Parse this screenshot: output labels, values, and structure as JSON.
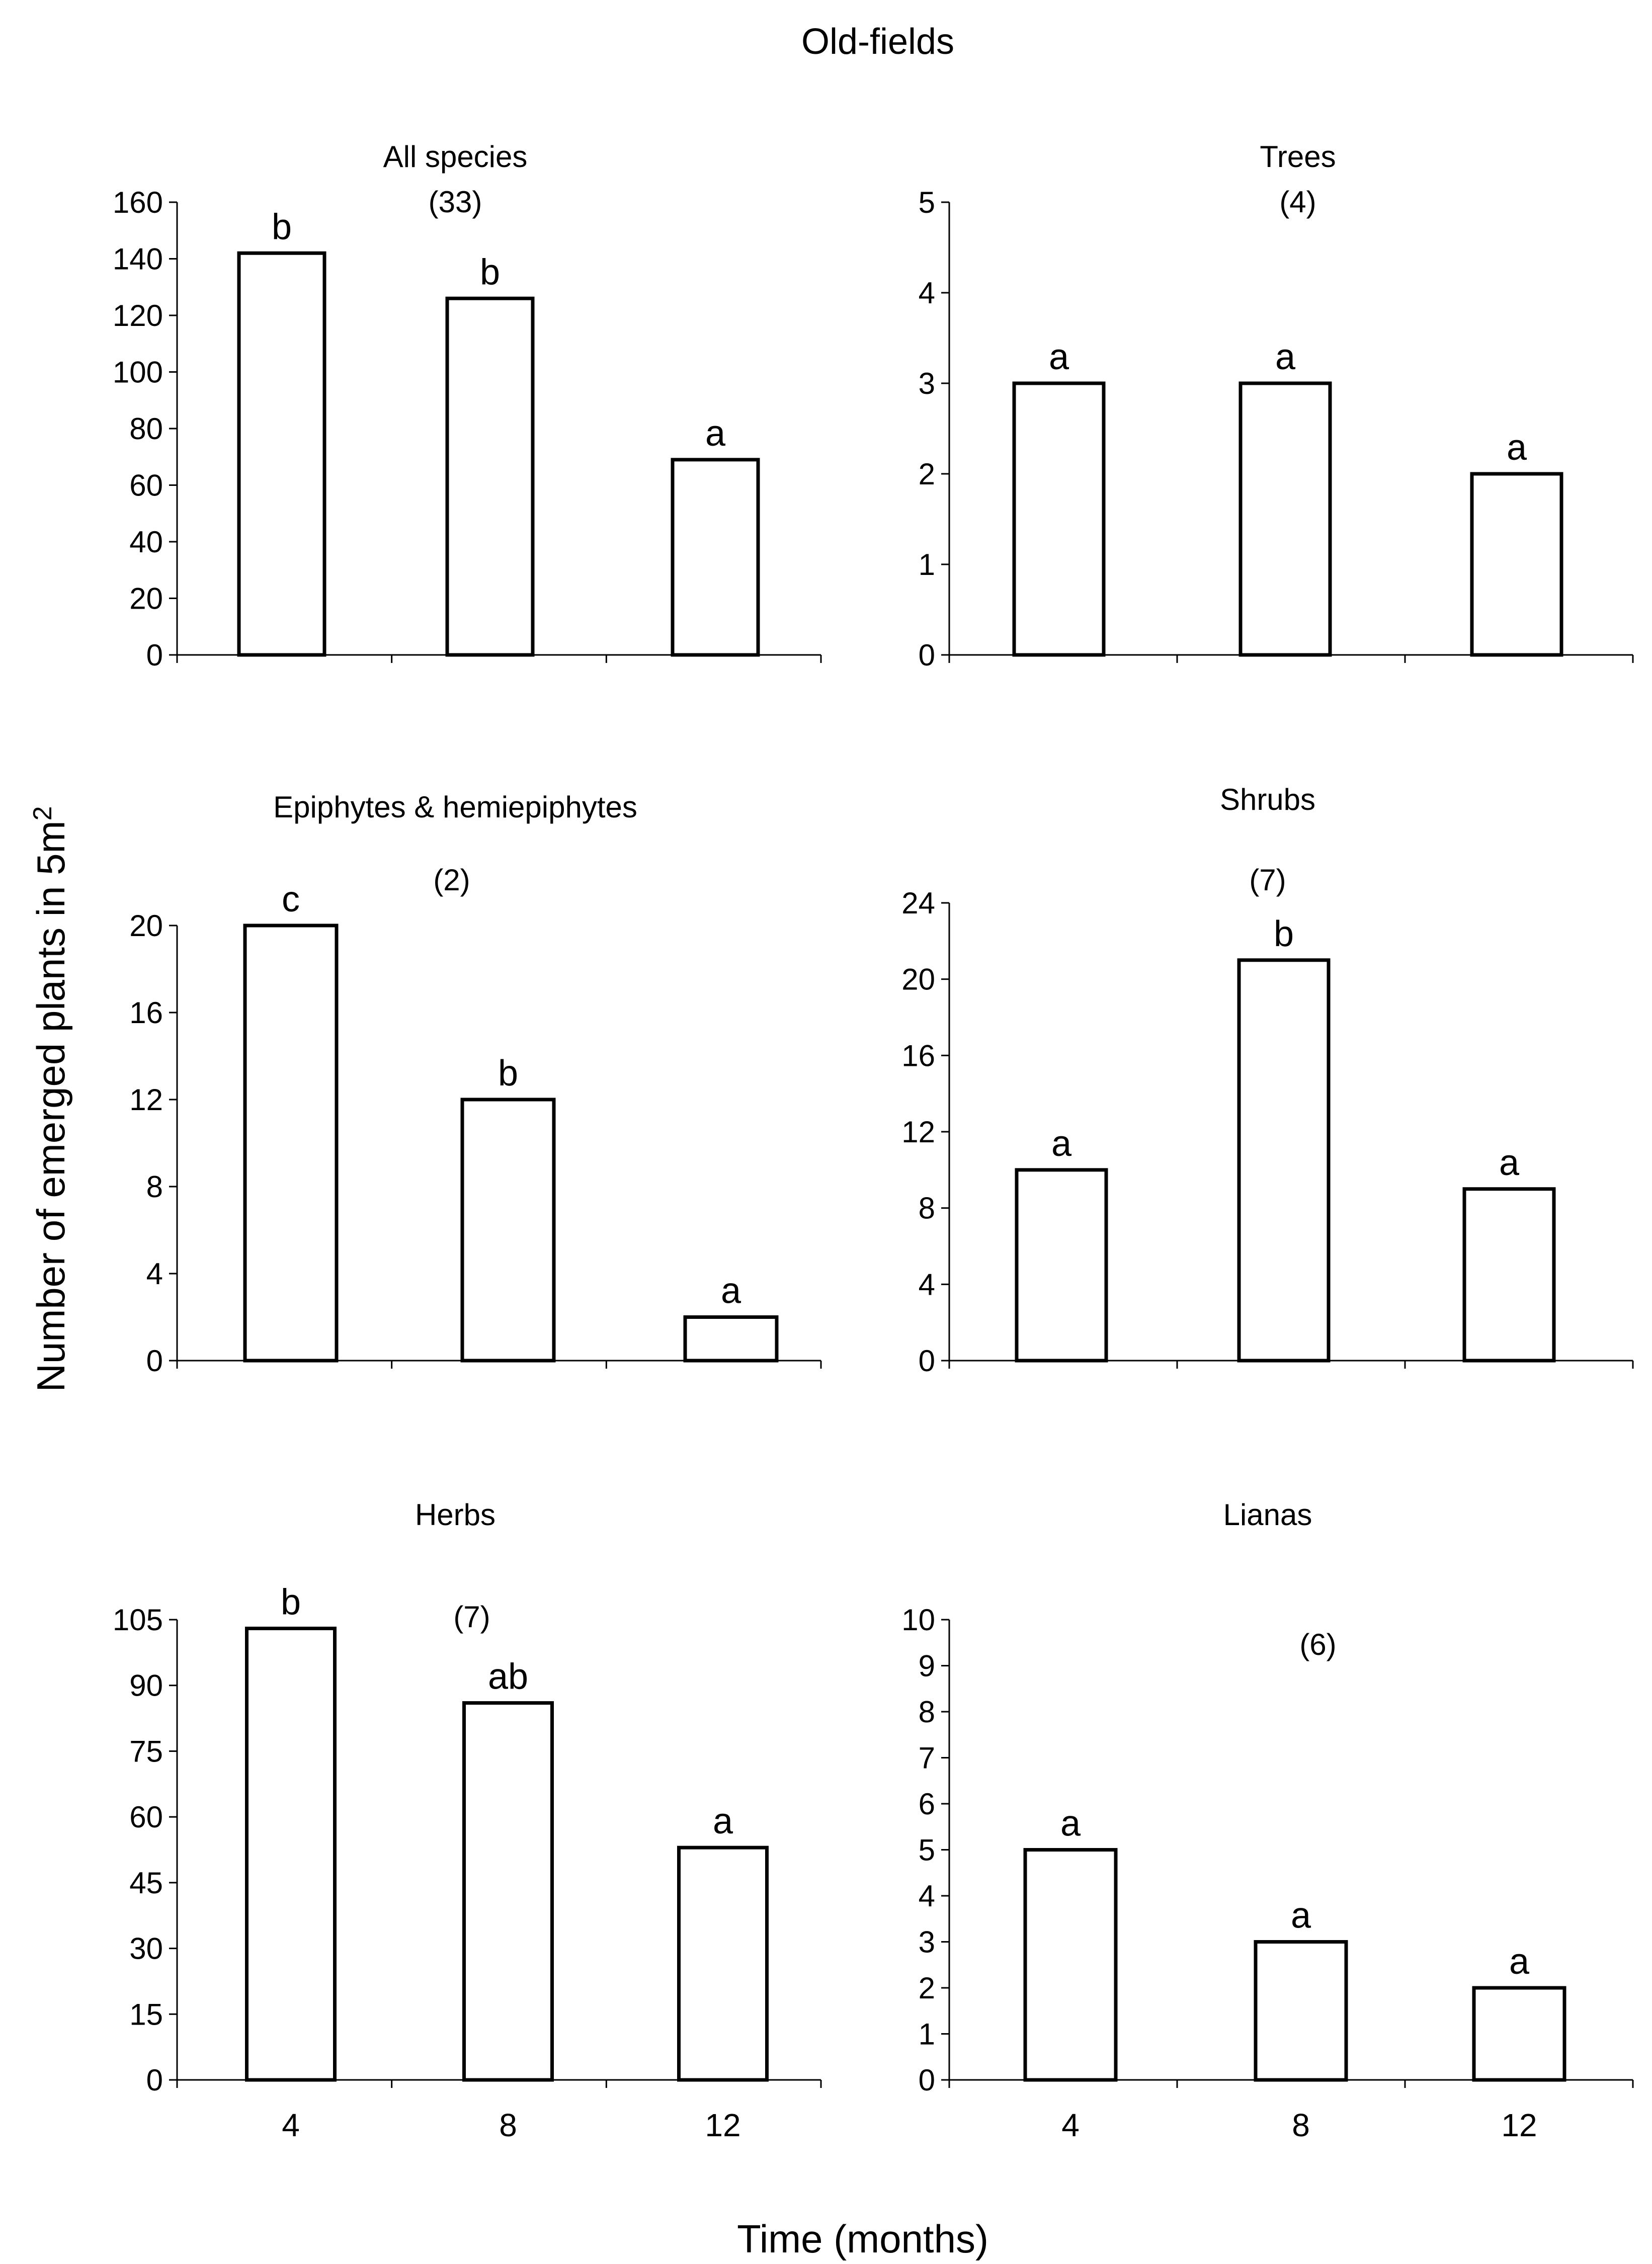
{
  "figure": {
    "title": "Old-fields",
    "ylabel_main": "Number of emerged plants in 5m",
    "ylabel_superscript": "2",
    "xlabel": "Time (months)"
  },
  "chart_data": [
    {
      "type": "bar",
      "title": "All species",
      "species_count": "(33)",
      "categories": [
        "4",
        "8",
        "12"
      ],
      "values": [
        142,
        126,
        69
      ],
      "significance": [
        "b",
        "b",
        "a"
      ],
      "ylim": [
        0,
        160
      ],
      "yticks": [
        0,
        20,
        40,
        60,
        80,
        100,
        120,
        140,
        160
      ],
      "show_xtick_labels": false
    },
    {
      "type": "bar",
      "title": "Trees",
      "species_count": "(4)",
      "categories": [
        "4",
        "8",
        "12"
      ],
      "values": [
        3,
        3,
        2
      ],
      "significance": [
        "a",
        "a",
        "a"
      ],
      "ylim": [
        0,
        5
      ],
      "yticks": [
        0,
        1,
        2,
        3,
        4,
        5
      ],
      "show_xtick_labels": false
    },
    {
      "type": "bar",
      "title": "Epiphytes & hemiepiphytes",
      "species_count": "(2)",
      "categories": [
        "4",
        "8",
        "12"
      ],
      "values": [
        20,
        12,
        2
      ],
      "significance": [
        "c",
        "b",
        "a"
      ],
      "ylim": [
        0,
        20
      ],
      "yticks": [
        0,
        4,
        8,
        12,
        16,
        20
      ],
      "show_xtick_labels": false
    },
    {
      "type": "bar",
      "title": "Shrubs",
      "species_count": "(7)",
      "categories": [
        "4",
        "8",
        "12"
      ],
      "values": [
        10,
        21,
        9
      ],
      "significance": [
        "a",
        "b",
        "a"
      ],
      "ylim": [
        0,
        24
      ],
      "yticks": [
        0,
        4,
        8,
        12,
        16,
        20,
        24
      ],
      "show_xtick_labels": false
    },
    {
      "type": "bar",
      "title": "Herbs",
      "species_count": "(7)",
      "categories": [
        "4",
        "8",
        "12"
      ],
      "values": [
        103,
        86,
        53
      ],
      "significance": [
        "b",
        "ab",
        "a"
      ],
      "ylim": [
        0,
        105
      ],
      "yticks": [
        0,
        15,
        30,
        45,
        60,
        75,
        90,
        105
      ],
      "show_xtick_labels": true
    },
    {
      "type": "bar",
      "title": "Lianas",
      "species_count": "(6)",
      "categories": [
        "4",
        "8",
        "12"
      ],
      "values": [
        5,
        3,
        2
      ],
      "significance": [
        "a",
        "a",
        "a"
      ],
      "ylim": [
        0,
        10
      ],
      "yticks": [
        0,
        1,
        2,
        3,
        4,
        5,
        6,
        7,
        8,
        9,
        10
      ],
      "show_xtick_labels": true
    }
  ]
}
